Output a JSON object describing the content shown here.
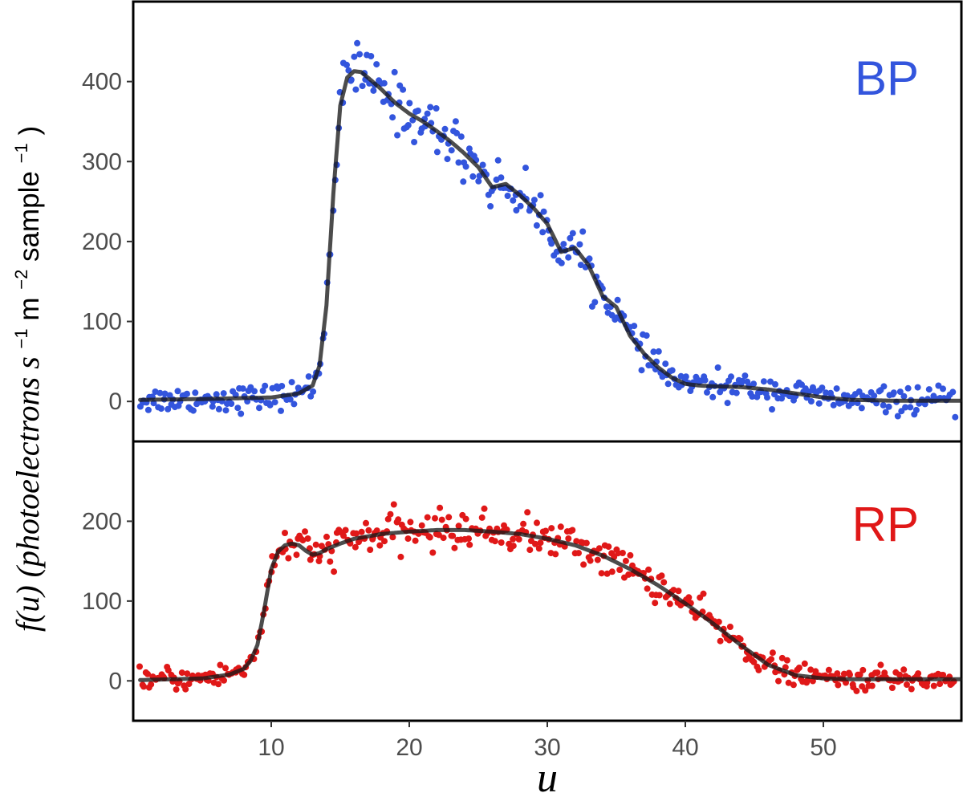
{
  "chart_data": {
    "type": "scatter",
    "x_label": "u",
    "y_label": {
      "prefix": "f(u) (photoelectrons s",
      "exp1": "−1",
      "mid": " m",
      "exp2": "−2",
      "tail": " sample",
      "exp3": "−1",
      "close": ")"
    },
    "x_range": [
      0,
      60
    ],
    "x_ticks": [
      10,
      20,
      30,
      40,
      50
    ],
    "grid": false,
    "panels": [
      {
        "label": "BP",
        "color": "#3355dd",
        "y_range": [
          -50,
          500
        ],
        "y_ticks": [
          0,
          100,
          200,
          300,
          400
        ],
        "series": [
          {
            "kind": "fit-line",
            "color": "#1a1a1a",
            "x": [
              0.5,
              5,
              10,
              12,
              13,
              13.5,
              14,
              14.5,
              15,
              15.5,
              16,
              16.5,
              17,
              18,
              19,
              20,
              21,
              22,
              23,
              24,
              25,
              26,
              27,
              28,
              29,
              30,
              31,
              32,
              33,
              34,
              35,
              36,
              37,
              38,
              39,
              40,
              41,
              42,
              44,
              46,
              48,
              50,
              52,
              55,
              58,
              60
            ],
            "y": [
              2,
              3,
              5,
              10,
              20,
              45,
              120,
              260,
              370,
              405,
              413,
              412,
              405,
              390,
              373,
              360,
              350,
              338,
              325,
              310,
              293,
              268,
              272,
              258,
              242,
              222,
              187,
              192,
              170,
              132,
              118,
              82,
              60,
              43,
              30,
              22,
              20,
              19,
              18,
              15,
              10,
              5,
              2,
              1,
              1,
              1
            ]
          },
          {
            "kind": "points",
            "noise": 8,
            "count": 420
          }
        ]
      },
      {
        "label": "RP",
        "color": "#e01818",
        "y_range": [
          -50,
          300
        ],
        "y_ticks": [
          0,
          100,
          200
        ],
        "series": [
          {
            "kind": "fit-line",
            "color": "#1a1a1a",
            "x": [
              0.5,
              5,
              7,
              8,
              8.5,
              9,
              9.5,
              10,
              10.5,
              11,
              11.5,
              12,
              12.5,
              13,
              13.5,
              14,
              15,
              16,
              18,
              20,
              22,
              24,
              26,
              28,
              30,
              32,
              34,
              36,
              38,
              40,
              42,
              44,
              46,
              48,
              50,
              52,
              55,
              58,
              60
            ],
            "y": [
              1,
              3,
              8,
              15,
              25,
              45,
              90,
              140,
              162,
              170,
              172,
              170,
              163,
              158,
              160,
              165,
              172,
              178,
              184,
              187,
              189,
              189,
              187,
              184,
              178,
              170,
              157,
              140,
              120,
              97,
              72,
              45,
              20,
              7,
              3,
              2,
              2,
              2,
              2
            ]
          },
          {
            "kind": "points",
            "noise": 7,
            "count": 430
          }
        ]
      }
    ]
  }
}
